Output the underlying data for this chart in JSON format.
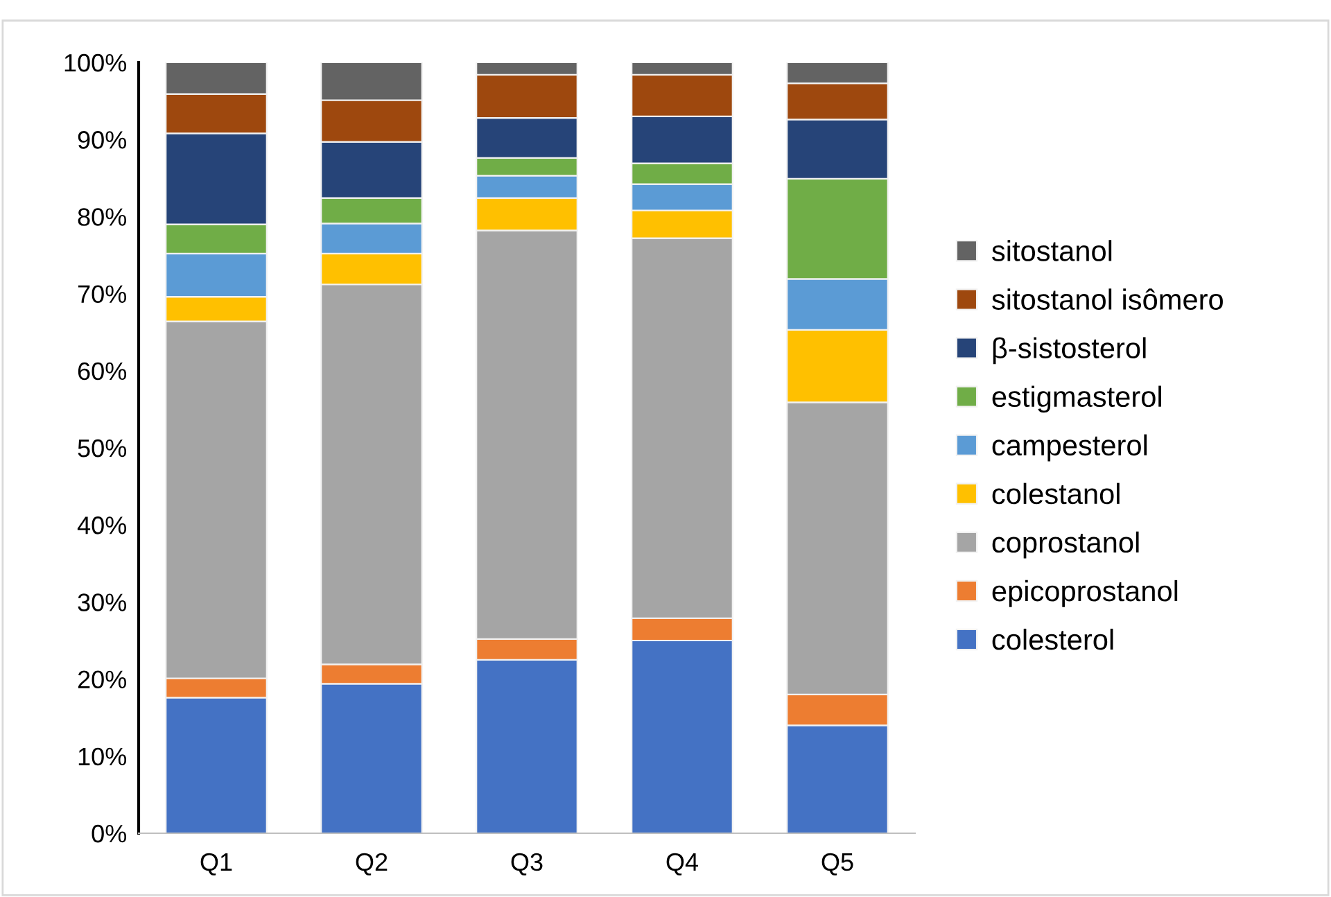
{
  "chart_data": {
    "type": "bar",
    "stacked": true,
    "categories": [
      "Q1",
      "Q2",
      "Q3",
      "Q4",
      "Q5"
    ],
    "series": [
      {
        "name": "colesterol",
        "color": "#4472c4",
        "values": [
          17.6,
          19.4,
          22.5,
          25.0,
          14.0
        ]
      },
      {
        "name": "epicoprostanol",
        "color": "#ed7d31",
        "values": [
          2.5,
          2.5,
          2.7,
          2.9,
          4.0
        ]
      },
      {
        "name": "coprostanol",
        "color": "#a5a5a5",
        "values": [
          46.3,
          49.3,
          53.0,
          49.3,
          37.9
        ]
      },
      {
        "name": "colestanol",
        "color": "#ffc000",
        "values": [
          3.2,
          4.0,
          4.2,
          3.6,
          9.4
        ]
      },
      {
        "name": "campesterol",
        "color": "#5b9bd5",
        "values": [
          5.6,
          3.9,
          2.9,
          3.4,
          6.6
        ]
      },
      {
        "name": "estigmasterol",
        "color": "#70ad47",
        "values": [
          3.8,
          3.3,
          2.3,
          2.7,
          13.0
        ]
      },
      {
        "name": "β-sistosterol",
        "color": "#264478",
        "values": [
          11.8,
          7.3,
          5.2,
          6.1,
          7.7
        ]
      },
      {
        "name": "sitostanol isômero",
        "color": "#9e480e",
        "values": [
          5.1,
          5.4,
          5.6,
          5.4,
          4.7
        ]
      },
      {
        "name": "sitostanol",
        "color": "#636363",
        "values": [
          4.1,
          4.9,
          1.6,
          1.6,
          2.7
        ]
      }
    ],
    "ylim": [
      0,
      100
    ],
    "yticks": [
      {
        "value": 0,
        "label": "0%"
      },
      {
        "value": 10,
        "label": "10%"
      },
      {
        "value": 20,
        "label": "20%"
      },
      {
        "value": 30,
        "label": "30%"
      },
      {
        "value": 40,
        "label": "40%"
      },
      {
        "value": 50,
        "label": "50%"
      },
      {
        "value": 60,
        "label": "60%"
      },
      {
        "value": 70,
        "label": "70%"
      },
      {
        "value": 80,
        "label": "80%"
      },
      {
        "value": 90,
        "label": "90%"
      },
      {
        "value": 100,
        "label": "100%"
      }
    ],
    "legend": "right",
    "grid": false
  }
}
